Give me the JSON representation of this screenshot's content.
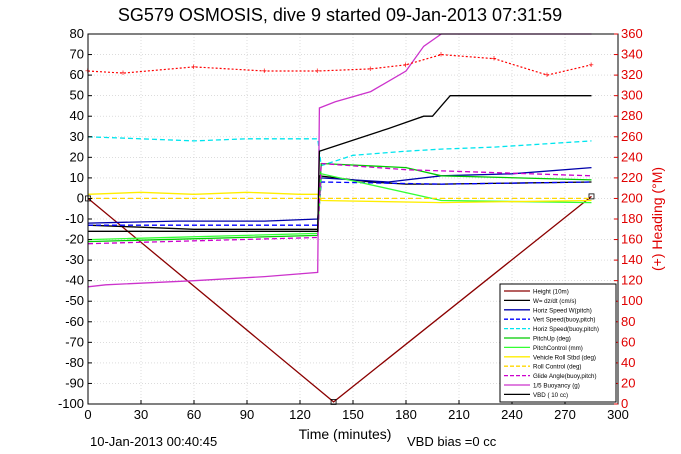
{
  "chart_data": {
    "type": "line",
    "title": "SG579 OSMOSIS, dive 9 started 09-Jan-2013 07:31:59",
    "xlabel": "Time (minutes)",
    "ylabel_right": "(+) Heading (°M)",
    "footer_left": "10-Jan-2013 00:40:45",
    "footer_right": "VBD bias =0 cc",
    "xlim": [
      0,
      300
    ],
    "ylim": [
      -100,
      80
    ],
    "ylim_right": [
      0,
      360
    ],
    "x_ticks": [
      "0",
      "30",
      "60",
      "90",
      "120",
      "150",
      "180",
      "210",
      "240",
      "270",
      "300"
    ],
    "y_ticks": [
      "-100",
      "-90",
      "-80",
      "-70",
      "-60",
      "-50",
      "-40",
      "-30",
      "-20",
      "-10",
      "0",
      "10",
      "20",
      "30",
      "40",
      "50",
      "60",
      "70",
      "80"
    ],
    "y_right_ticks": [
      "0",
      "20",
      "40",
      "60",
      "80",
      "100",
      "120",
      "140",
      "160",
      "180",
      "200",
      "220",
      "240",
      "260",
      "280",
      "300",
      "320",
      "340",
      "360"
    ],
    "grid": true,
    "legend_position": "bottom-right",
    "colors": {
      "height": "#8b0000",
      "w": "#000000",
      "horz_speed_w_pitch": "#0000aa",
      "vert_speed_buoy": "#0000ff",
      "horz_speed_buoy": "#00e5ee",
      "pitch_up": "#00cc00",
      "pitch_control": "#33ff33",
      "vehicle_roll": "#ffee00",
      "roll_control": "#ffd700",
      "glide_angle": "#cc00cc",
      "buoyancy": "#cc33cc",
      "vbd": "#000000",
      "heading": "#ff0000"
    },
    "series": [
      {
        "name": "Height (10m)",
        "x": [
          0,
          139,
          285
        ],
        "values": [
          0,
          -99,
          1
        ]
      },
      {
        "name": "W= dz/dt (cm/s)",
        "x": [
          0,
          30,
          60,
          90,
          120,
          130,
          131,
          160,
          180,
          200,
          285
        ],
        "values": [
          -13,
          -14,
          -15,
          -15,
          -15,
          -15,
          11,
          8,
          7,
          7,
          8
        ]
      },
      {
        "name": "Horiz Speed W(pitch)",
        "x": [
          0,
          50,
          100,
          130,
          132,
          170,
          200,
          240,
          285
        ],
        "values": [
          -12,
          -11,
          -11,
          -10,
          10,
          8,
          11,
          12,
          15
        ]
      },
      {
        "name": "Vert Speed(buoy,pitch)",
        "x": [
          0,
          130,
          132,
          200,
          285
        ],
        "values": [
          -13,
          -13,
          8,
          7,
          8
        ]
      },
      {
        "name": "Horiz Speed(buoy,pitch)",
        "x": [
          0,
          30,
          60,
          90,
          120,
          130,
          132,
          150,
          180,
          200,
          230,
          285
        ],
        "values": [
          30,
          29,
          28,
          29,
          29,
          29,
          16,
          21,
          23,
          24,
          25,
          28
        ]
      },
      {
        "name": "PitchUp (deg)",
        "x": [
          0,
          130,
          132,
          180,
          200,
          285
        ],
        "values": [
          -21,
          -18,
          17,
          15,
          11,
          9
        ]
      },
      {
        "name": "PitchControl (mm)",
        "x": [
          0,
          130,
          132,
          200,
          285
        ],
        "values": [
          -20,
          -17,
          12,
          -1,
          -2
        ]
      },
      {
        "name": "Vehicle Roll Stbd (deg)",
        "x": [
          0,
          30,
          60,
          90,
          120,
          130,
          132,
          200,
          285
        ],
        "values": [
          2,
          3,
          2,
          3,
          2,
          2,
          -1,
          -2,
          -1
        ]
      },
      {
        "name": "Roll Control (deg)",
        "x": [
          0,
          285
        ],
        "values": [
          0,
          0
        ]
      },
      {
        "name": "Glide Angle(buoy,pitch)",
        "x": [
          0,
          130,
          132,
          180,
          285
        ],
        "values": [
          -22,
          -19,
          17,
          14,
          11
        ]
      },
      {
        "name": "1/5 Buoyancy (g)",
        "x": [
          0,
          10,
          60,
          100,
          130,
          131,
          140,
          160,
          180,
          190,
          200,
          285
        ],
        "values": [
          -43,
          -42,
          -40,
          -38,
          -36,
          44,
          47,
          52,
          62,
          74,
          80,
          80
        ]
      },
      {
        "name": "VBD ( 10 cc)",
        "x": [
          0,
          130,
          131,
          170,
          190,
          195,
          200,
          205,
          285
        ],
        "values": [
          -16,
          -16,
          23,
          34,
          40,
          40,
          45,
          50,
          50
        ]
      }
    ],
    "heading_series": {
      "name": "Heading",
      "x": [
        0,
        20,
        60,
        100,
        130,
        160,
        180,
        200,
        230,
        260,
        285
      ],
      "values": [
        324,
        322,
        328,
        324,
        324,
        326,
        330,
        340,
        336,
        320,
        330
      ]
    }
  }
}
